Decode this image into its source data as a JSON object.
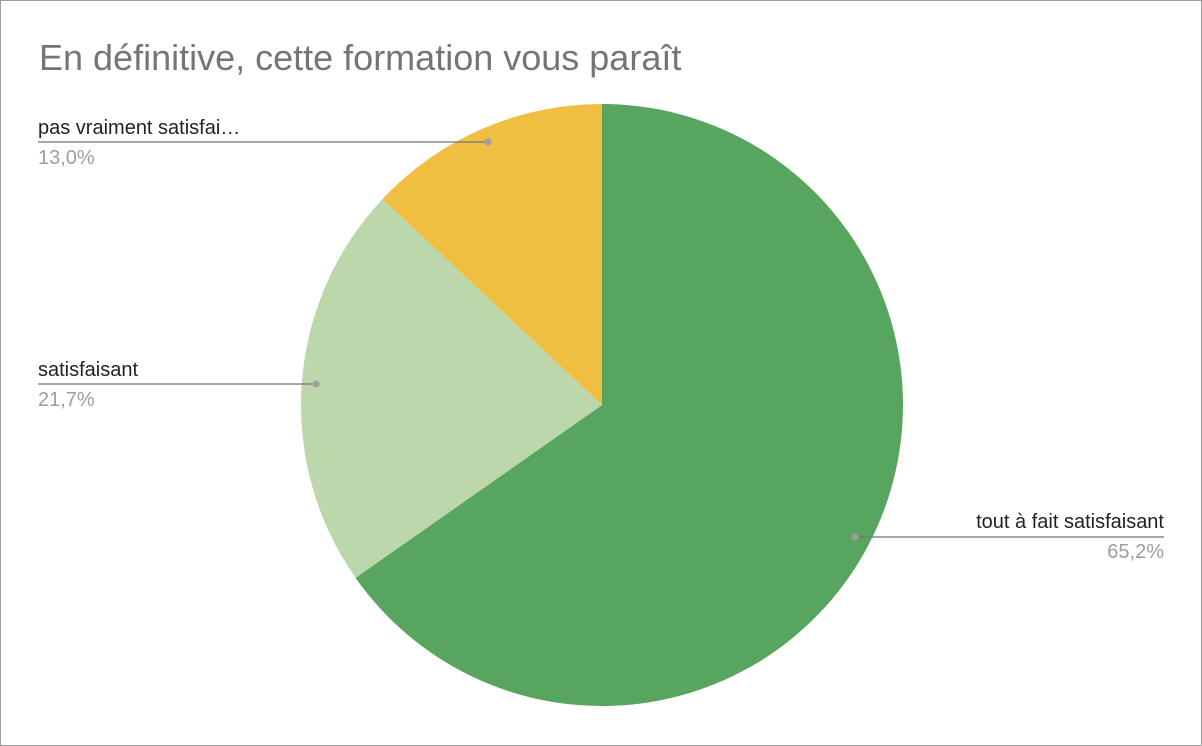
{
  "chart_data": {
    "type": "pie",
    "title": "En définitive, cette formation vous paraît",
    "legend": "none",
    "slices": [
      {
        "label": "tout à fait satisfaisant",
        "value": 65.2,
        "pct_label": "65,2%",
        "color": "#57a55f"
      },
      {
        "label": "satisfaisant",
        "value": 21.7,
        "pct_label": "21,7%",
        "color": "#bdd7ad"
      },
      {
        "label": "pas vraiment satisfai…",
        "value": 13.0,
        "pct_label": "13,0%",
        "color": "#f0bf42"
      }
    ],
    "leader_line_color": "#757575",
    "leader_dot_color": "#9e9e9e"
  }
}
